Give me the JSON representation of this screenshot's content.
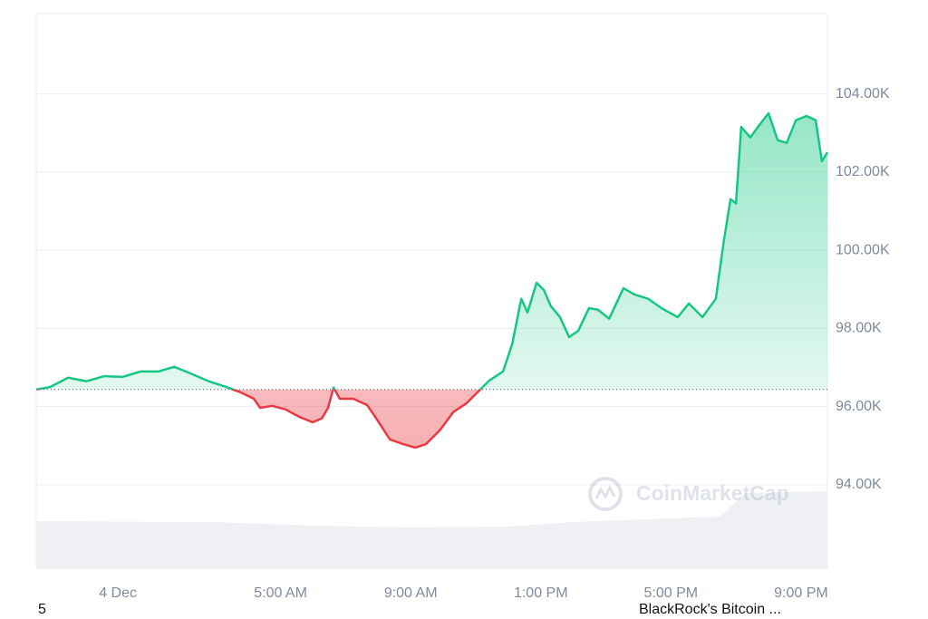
{
  "chart_data": {
    "type": "line",
    "x": [
      -2.51,
      -2.09,
      -1.53,
      -0.97,
      -0.42,
      0.14,
      0.7,
      1.25,
      1.73,
      2.23,
      2.79,
      3.34,
      3.76,
      4.18,
      4.37,
      4.74,
      5.15,
      5.57,
      5.99,
      6.27,
      6.46,
      6.63,
      6.82,
      7.24,
      7.66,
      7.94,
      8.36,
      8.77,
      9.14,
      9.47,
      9.89,
      10.31,
      10.72,
      11.14,
      11.42,
      11.84,
      12.12,
      12.4,
      12.59,
      12.87,
      13.09,
      13.31,
      13.59,
      13.87,
      14.15,
      14.48,
      14.76,
      15.1,
      15.54,
      15.88,
      16.3,
      16.71,
      17.21,
      17.55,
      17.97,
      18.38,
      18.61,
      18.83,
      19.0,
      19.16,
      19.44,
      19.72,
      20.0,
      20.28,
      20.56,
      20.84,
      21.17,
      21.45,
      21.64,
      21.81
    ],
    "series": [
      {
        "color": "#16c784",
        "down_color": "#ea3943",
        "values": [
          96440,
          96500,
          96740,
          96650,
          96780,
          96760,
          96900,
          96900,
          97020,
          96850,
          96650,
          96500,
          96370,
          96200,
          95970,
          96020,
          95930,
          95740,
          95600,
          95700,
          95970,
          96490,
          96200,
          96200,
          96040,
          95700,
          95160,
          95040,
          94950,
          95040,
          95390,
          95860,
          96090,
          96440,
          96670,
          96900,
          97600,
          98760,
          98410,
          99170,
          98990,
          98570,
          98290,
          97780,
          97940,
          98520,
          98480,
          98250,
          99030,
          98870,
          98760,
          98520,
          98290,
          98640,
          98290,
          98760,
          100150,
          101310,
          101200,
          103160,
          102890,
          103210,
          103510,
          102820,
          102750,
          103330,
          103440,
          103330,
          102280,
          102510
        ]
      }
    ],
    "baseline": 96440,
    "volume": {
      "color": "#eef0f4",
      "vlim": [
        0,
        100
      ],
      "x": [
        -2.51,
        3,
        6,
        9,
        12,
        14,
        17,
        18.5,
        19.3,
        21.81
      ],
      "values": [
        53,
        52,
        48,
        46,
        47,
        52,
        56,
        58,
        84,
        86
      ]
    },
    "xlim": [
      -2.51,
      21.81
    ],
    "xticks": [
      {
        "value": 0,
        "label": "4 Dec"
      },
      {
        "value": 5,
        "label": "5:00 AM"
      },
      {
        "value": 9,
        "label": "9:00 AM"
      },
      {
        "value": 13,
        "label": "1:00 PM"
      },
      {
        "value": 17,
        "label": "5:00 PM"
      },
      {
        "value": 21,
        "label": "9:00 PM"
      }
    ],
    "ylim": [
      91840,
      106060
    ],
    "yticks": [
      {
        "value": 94000,
        "label": "94.00K"
      },
      {
        "value": 96000,
        "label": "96.00K"
      },
      {
        "value": 98000,
        "label": "98.00K"
      },
      {
        "value": 100000,
        "label": "100.00K"
      },
      {
        "value": 102000,
        "label": "102.00K"
      },
      {
        "value": 104000,
        "label": "104.00K"
      }
    ],
    "grid": true,
    "watermark": "CoinMarketCap"
  },
  "footer": {
    "left": "5",
    "right": "BlackRock's Bitcoin ..."
  }
}
